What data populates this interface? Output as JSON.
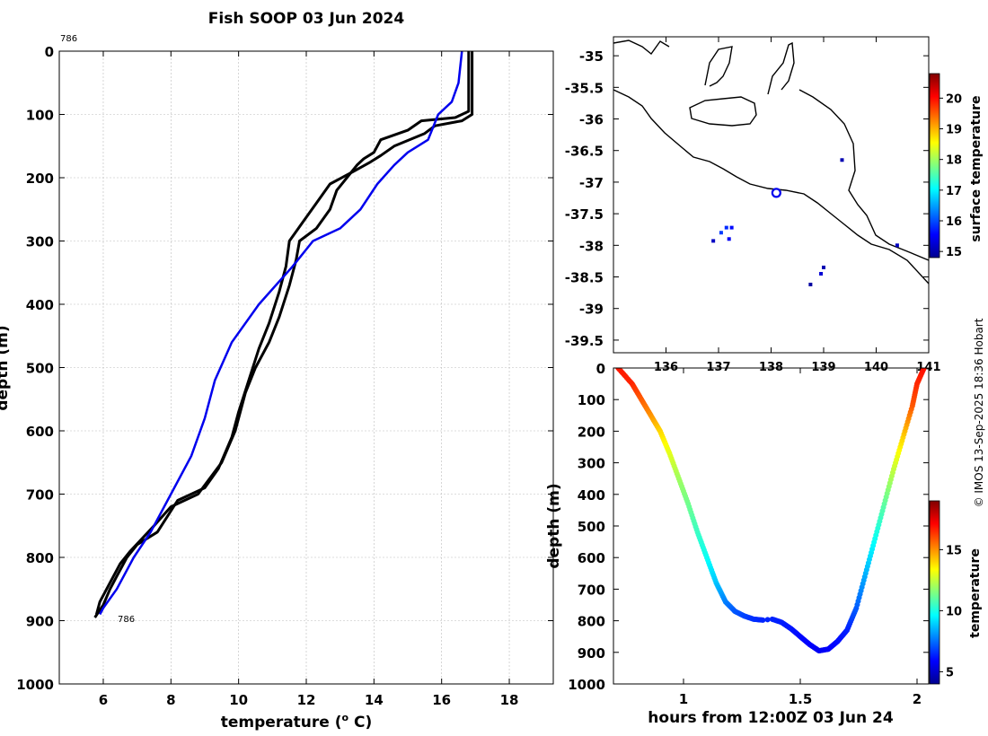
{
  "chart_data": [
    {
      "id": "profile",
      "type": "line",
      "title": "Fish SOOP 03 Jun 2024",
      "xlabel": "temperature (",
      "xlabel_sup": "o",
      "xlabel_end": " C)",
      "ylabel": "depth (m)",
      "xlim": [
        4.7,
        19.3
      ],
      "ylim": [
        0,
        1000
      ],
      "x_ticks": [
        6,
        8,
        10,
        12,
        14,
        16,
        18
      ],
      "y_ticks": [
        0,
        100,
        200,
        300,
        400,
        500,
        600,
        700,
        800,
        900,
        1000
      ],
      "annotations": {
        "top": "786",
        "bottom": "786"
      },
      "series": [
        {
          "name": "profile-down",
          "color": "#000000",
          "points": [
            [
              16.8,
              0
            ],
            [
              16.8,
              95
            ],
            [
              16.4,
              105
            ],
            [
              15.4,
              110
            ],
            [
              15.0,
              125
            ],
            [
              14.2,
              140
            ],
            [
              14.0,
              160
            ],
            [
              13.7,
              170
            ],
            [
              13.5,
              180
            ],
            [
              13.2,
              200
            ],
            [
              12.9,
              220
            ],
            [
              12.7,
              250
            ],
            [
              12.3,
              280
            ],
            [
              11.8,
              300
            ],
            [
              11.7,
              330
            ],
            [
              11.5,
              370
            ],
            [
              11.2,
              420
            ],
            [
              10.9,
              460
            ],
            [
              10.5,
              500
            ],
            [
              10.2,
              540
            ],
            [
              9.9,
              600
            ],
            [
              9.5,
              650
            ],
            [
              8.8,
              700
            ],
            [
              8.0,
              720
            ],
            [
              7.5,
              750
            ],
            [
              6.8,
              790
            ],
            [
              6.5,
              810
            ],
            [
              6.3,
              830
            ],
            [
              6.1,
              850
            ],
            [
              5.9,
              870
            ],
            [
              5.8,
              890
            ]
          ]
        },
        {
          "name": "profile-up",
          "color": "#000000",
          "points": [
            [
              16.9,
              0
            ],
            [
              16.9,
              100
            ],
            [
              16.6,
              110
            ],
            [
              15.8,
              118
            ],
            [
              15.5,
              130
            ],
            [
              14.6,
              150
            ],
            [
              14.2,
              165
            ],
            [
              13.9,
              175
            ],
            [
              13.4,
              190
            ],
            [
              12.7,
              210
            ],
            [
              12.3,
              240
            ],
            [
              11.9,
              270
            ],
            [
              11.5,
              300
            ],
            [
              11.4,
              340
            ],
            [
              11.2,
              380
            ],
            [
              10.9,
              430
            ],
            [
              10.6,
              470
            ],
            [
              10.3,
              520
            ],
            [
              10.0,
              570
            ],
            [
              9.8,
              610
            ],
            [
              9.4,
              660
            ],
            [
              9.0,
              690
            ],
            [
              8.2,
              710
            ],
            [
              7.6,
              760
            ],
            [
              7.0,
              780
            ],
            [
              6.7,
              800
            ],
            [
              6.4,
              830
            ],
            [
              6.2,
              850
            ],
            [
              6.0,
              875
            ],
            [
              5.75,
              895
            ]
          ]
        },
        {
          "name": "climatology",
          "color": "#0000ee",
          "points": [
            [
              16.6,
              0
            ],
            [
              16.5,
              50
            ],
            [
              16.3,
              80
            ],
            [
              15.9,
              100
            ],
            [
              15.6,
              140
            ],
            [
              15.0,
              160
            ],
            [
              14.6,
              180
            ],
            [
              14.1,
              210
            ],
            [
              13.6,
              250
            ],
            [
              13.0,
              280
            ],
            [
              12.2,
              300
            ],
            [
              11.6,
              340
            ],
            [
              10.6,
              400
            ],
            [
              9.8,
              460
            ],
            [
              9.3,
              520
            ],
            [
              9.0,
              580
            ],
            [
              8.6,
              640
            ],
            [
              8.0,
              700
            ],
            [
              7.4,
              760
            ],
            [
              6.9,
              800
            ],
            [
              6.4,
              850
            ],
            [
              6.0,
              880
            ],
            [
              5.9,
              890
            ]
          ]
        }
      ]
    },
    {
      "id": "map",
      "type": "scatter",
      "x_ticks": [
        "136",
        "137",
        "138",
        "139",
        "140",
        "141"
      ],
      "y_ticks": [
        "-35",
        "-35.5",
        "-36",
        "-36.5",
        "-37",
        "-37.5",
        "-38",
        "-38.5",
        "-39",
        "-39.5"
      ],
      "xlim": [
        135.0,
        141.0
      ],
      "ylim": [
        -39.7,
        -34.7
      ],
      "position_marker": {
        "lon": 138.1,
        "lat": -37.17
      },
      "colorbar": {
        "label": "surface temperature",
        "ticks": [
          "15",
          "16",
          "17",
          "18",
          "19",
          "20"
        ],
        "range": [
          14.8,
          20.8
        ]
      }
    },
    {
      "id": "time-depth",
      "type": "scatter",
      "xlabel": "hours from 12:00Z 03 Jun 24",
      "ylabel": "depth (m)",
      "xlim": [
        0.7,
        2.05
      ],
      "ylim": [
        0,
        1000
      ],
      "x_ticks": [
        "1",
        "1.5",
        "2"
      ],
      "y_ticks": [
        "0",
        "100",
        "200",
        "300",
        "400",
        "500",
        "600",
        "700",
        "800",
        "900",
        "1000"
      ],
      "colorbar": {
        "label": "temperature",
        "ticks": [
          "5",
          "10",
          "15"
        ],
        "range": [
          4,
          19
        ]
      },
      "track": [
        [
          0.72,
          0,
          16.8
        ],
        [
          0.78,
          50,
          16.6
        ],
        [
          0.82,
          100,
          15.8
        ],
        [
          0.86,
          150,
          15.0
        ],
        [
          0.9,
          200,
          14.0
        ],
        [
          0.94,
          270,
          13.0
        ],
        [
          0.98,
          350,
          12.0
        ],
        [
          1.02,
          430,
          11.3
        ],
        [
          1.06,
          520,
          10.5
        ],
        [
          1.1,
          600,
          9.8
        ],
        [
          1.14,
          680,
          8.8
        ],
        [
          1.18,
          740,
          7.8
        ],
        [
          1.22,
          770,
          7.2
        ],
        [
          1.26,
          785,
          6.9
        ],
        [
          1.3,
          795,
          6.6
        ],
        [
          1.34,
          798,
          6.4
        ],
        [
          1.38,
          795,
          6.4
        ],
        [
          1.42,
          805,
          6.3
        ],
        [
          1.46,
          825,
          6.2
        ],
        [
          1.5,
          850,
          6.0
        ],
        [
          1.54,
          875,
          5.9
        ],
        [
          1.58,
          895,
          5.7
        ],
        [
          1.62,
          890,
          5.8
        ],
        [
          1.66,
          865,
          6.0
        ],
        [
          1.7,
          830,
          6.3
        ],
        [
          1.74,
          760,
          7.2
        ],
        [
          1.78,
          650,
          8.5
        ],
        [
          1.82,
          540,
          9.8
        ],
        [
          1.86,
          430,
          11.0
        ],
        [
          1.9,
          320,
          12.5
        ],
        [
          1.94,
          220,
          14.0
        ],
        [
          1.98,
          120,
          15.8
        ],
        [
          2.0,
          50,
          16.5
        ],
        [
          2.03,
          0,
          16.9
        ]
      ]
    }
  ],
  "credit": "© IMOS 13-Sep-2025 18:36 Hobart"
}
